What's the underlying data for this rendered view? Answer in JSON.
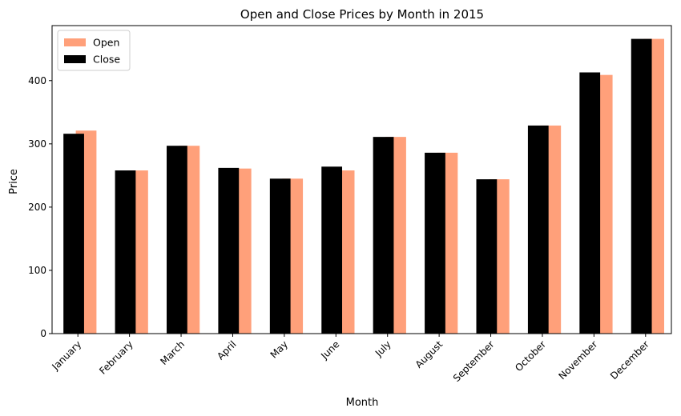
{
  "chart_data": {
    "type": "bar",
    "title": "Open and Close Prices by Month in 2015",
    "xlabel": "Month",
    "ylabel": "Price",
    "ylim": [
      0,
      487
    ],
    "yticks": [
      0,
      100,
      200,
      300,
      400
    ],
    "grid": false,
    "legend_position": "top-left",
    "categories": [
      "January",
      "February",
      "March",
      "April",
      "May",
      "June",
      "July",
      "August",
      "September",
      "October",
      "November",
      "December"
    ],
    "series": [
      {
        "name": "Open",
        "color": "#FFA07A",
        "values": [
          321,
          258,
          297,
          261,
          245,
          258,
          311,
          286,
          244,
          329,
          409,
          466
        ]
      },
      {
        "name": "Close",
        "color": "#000000",
        "values": [
          316,
          258,
          297,
          262,
          245,
          264,
          311,
          286,
          244,
          329,
          413,
          466
        ]
      }
    ]
  }
}
